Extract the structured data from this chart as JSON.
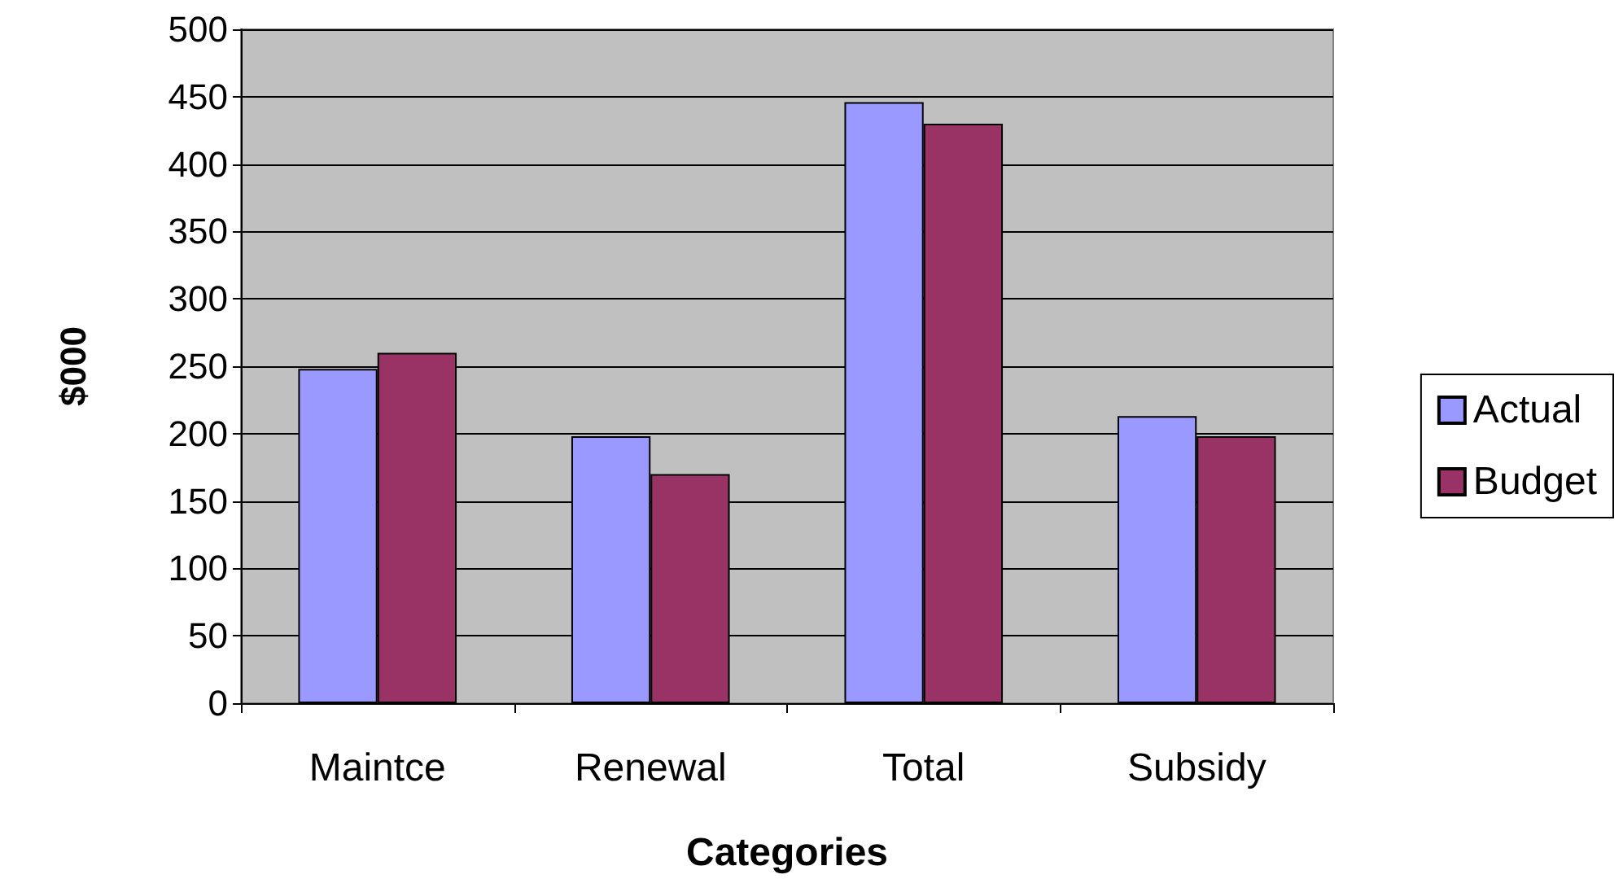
{
  "chart_data": {
    "type": "bar",
    "xlabel": "Categories",
    "ylabel": "$000",
    "categories": [
      "Maintce",
      "Renewal",
      "Total",
      "Subsidy"
    ],
    "series": [
      {
        "name": "Actual",
        "color": "#9999ff",
        "values": [
          248,
          198,
          446,
          213
        ]
      },
      {
        "name": "Budget",
        "color": "#993366",
        "values": [
          260,
          170,
          430,
          198
        ]
      }
    ],
    "ylim": [
      0,
      500
    ],
    "yticks": [
      0,
      50,
      100,
      150,
      200,
      250,
      300,
      350,
      400,
      450,
      500
    ],
    "grid": "y",
    "legend": "right"
  }
}
